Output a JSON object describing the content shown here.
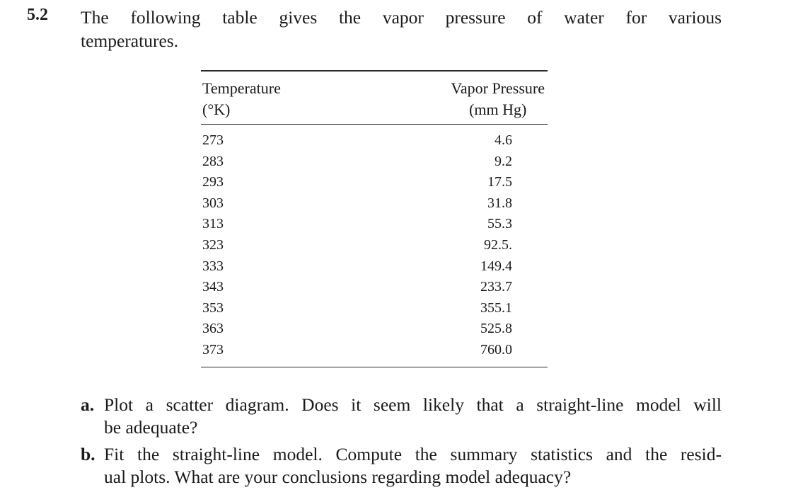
{
  "problem": {
    "number": "5.2",
    "intro_line1": "The following table gives the vapor pressure of water for various",
    "intro_line2": "temperatures."
  },
  "table": {
    "headers": {
      "temperature_line1": "Temperature",
      "temperature_line2": "(°K)",
      "pressure_line1": "Vapor Pressure",
      "pressure_line2": "(mm Hg)"
    },
    "rows": [
      {
        "temperature": "273",
        "pressure": "4.6"
      },
      {
        "temperature": "283",
        "pressure": "9.2"
      },
      {
        "temperature": "293",
        "pressure": "17.5"
      },
      {
        "temperature": "303",
        "pressure": "31.8"
      },
      {
        "temperature": "313",
        "pressure": "55.3"
      },
      {
        "temperature": "323",
        "pressure": "92.5."
      },
      {
        "temperature": "333",
        "pressure": "149.4"
      },
      {
        "temperature": "343",
        "pressure": "233.7"
      },
      {
        "temperature": "353",
        "pressure": "355.1"
      },
      {
        "temperature": "363",
        "pressure": "525.8"
      },
      {
        "temperature": "373",
        "pressure": "760.0"
      }
    ]
  },
  "parts": [
    {
      "letter": "a.",
      "line1": "Plot a scatter diagram. Does it seem likely that a straight-line model will",
      "line2": "be adequate?"
    },
    {
      "letter": "b.",
      "line1": "Fit the straight-line model. Compute the summary statistics and the resid-",
      "line2": "ual plots. What are your conclusions regarding model adequacy?"
    }
  ]
}
